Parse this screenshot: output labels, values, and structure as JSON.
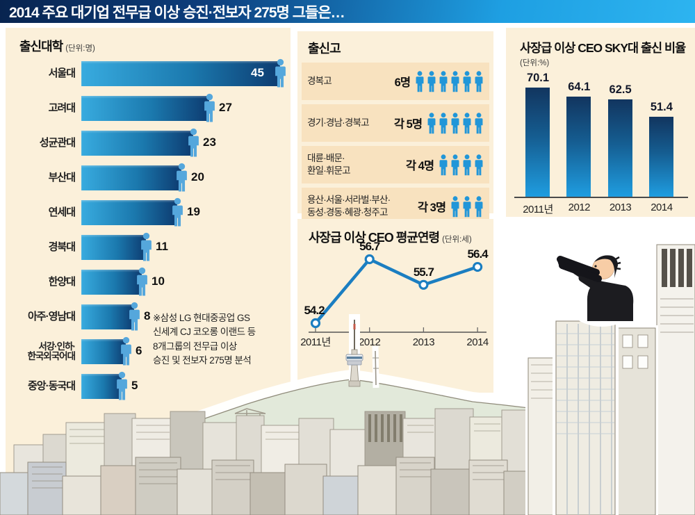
{
  "title_bar": {
    "title": "2014 주요 대기업 전무급 이상 승진·전보자 275명 그들은…"
  },
  "footnote": "※삼성 LG 현대중공업 GS\n신세계 CJ 코오롱 이랜드 등\n8개그룹의 전무급 이상\n승진 및 전보자 275명 분석",
  "colors": {
    "title_gradient_left": "#0a2c5e",
    "title_gradient_right": "#1f9fe0",
    "panel_bg": "#fbf0da",
    "row_bg": "#f8e2bf",
    "hbar_gradient": [
      "#38abdf",
      "#0d3b70"
    ],
    "vbar_gradient": [
      "#12355f",
      "#1f9de0"
    ],
    "person_icon_blue": "#55a7dc",
    "pictogram_icon_blue": "#2196d8",
    "line_blue": "#1b7ec1"
  },
  "chart_data": [
    {
      "type": "bar",
      "orientation": "horizontal",
      "title": "출신대학",
      "unit_label": "(단위:명)",
      "categories": [
        "서울대",
        "고려대",
        "성균관대",
        "부산대",
        "연세대",
        "경북대",
        "한양대",
        "아주·영남대",
        "서강·인하·\n한국외국어대",
        "중앙·동국대"
      ],
      "values": [
        45,
        27,
        23,
        20,
        19,
        11,
        10,
        8,
        6,
        5
      ],
      "xlim": [
        0,
        45
      ],
      "value_labels_shown": true
    },
    {
      "type": "table",
      "title": "출신고",
      "rows": [
        {
          "label": "경복고",
          "count_label": "6명",
          "count": 6
        },
        {
          "label": "경기·경남·경북고",
          "count_label": "각 5명",
          "count": 5
        },
        {
          "label": "대륜·배문·\n환일·휘문고",
          "count_label": "각 4명",
          "count": 4
        },
        {
          "label": "용산·서울·서라벌·부산·\n동성·경동·혜광·청주고",
          "count_label": "각 3명",
          "count": 3
        }
      ]
    },
    {
      "type": "line",
      "title": "사장급 이상 CEO 평균연령",
      "unit_label": "(단위:세)",
      "x": [
        "2011년",
        "2012",
        "2013",
        "2014"
      ],
      "values": [
        54.2,
        56.7,
        55.7,
        56.4
      ],
      "ylim": [
        54,
        57.5
      ]
    },
    {
      "type": "bar",
      "orientation": "vertical",
      "title": "사장급 이상 CEO SKY대 출신 비율",
      "unit_label": "(단위:%)",
      "categories": [
        "2011년",
        "2012",
        "2013",
        "2014"
      ],
      "values": [
        70.1,
        64.1,
        62.5,
        51.4
      ],
      "ylim": [
        0,
        75
      ]
    }
  ],
  "illustration": {
    "elements": [
      "city-skyline",
      "n-seoul-tower",
      "namsan-mountain",
      "man-with-binoculars",
      "construction-crane"
    ]
  }
}
